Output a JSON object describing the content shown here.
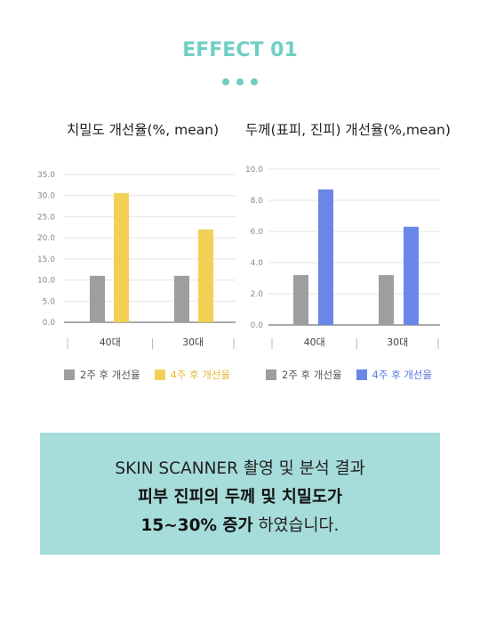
{
  "header": {
    "title": "EFFECT 01"
  },
  "colors": {
    "accent": "#6fcfc4",
    "grey": "#9e9e9e",
    "yellow": "#f2cf55",
    "blue": "#6a87e8",
    "box": "#a6dcda"
  },
  "chart_data": [
    {
      "type": "bar",
      "title": "치밀도 개선율(%, mean)",
      "categories": [
        "40대",
        "30대"
      ],
      "series": [
        {
          "name": "2주 후 개선율",
          "values": [
            11.0,
            11.0
          ]
        },
        {
          "name": "4주 후 개선율",
          "values": [
            30.6,
            22.0
          ]
        }
      ],
      "yticks": [
        "0.0",
        "5.0",
        "10.0",
        "15.0",
        "20.0",
        "25.0",
        "30.0",
        "35.0"
      ],
      "ylim": [
        0,
        35
      ],
      "grid": true,
      "legend": "bottom"
    },
    {
      "type": "bar",
      "title": "두께(표피, 진피) 개선율(%,mean)",
      "categories": [
        "40대",
        "30대"
      ],
      "series": [
        {
          "name": "2주 후 개선율",
          "values": [
            3.2,
            3.2
          ]
        },
        {
          "name": "4주 후 개선율",
          "values": [
            8.7,
            6.3
          ]
        }
      ],
      "yticks": [
        "0.0",
        "2.0",
        "4.0",
        "6.0",
        "8.0",
        "10.0"
      ],
      "ylim": [
        0,
        10
      ],
      "grid": true,
      "legend": "bottom"
    }
  ],
  "summary": {
    "line1": "SKIN SCANNER 촬영 및 분석 결과",
    "line2": "피부 진피의 두께 및 치밀도가",
    "line3_bold": "15~30% 증가",
    "line3_rest": " 하였습니다."
  }
}
